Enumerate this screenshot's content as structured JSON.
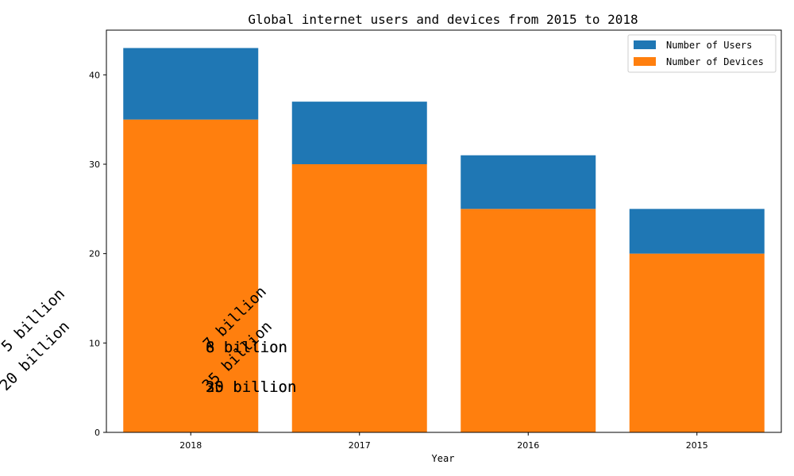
{
  "chart_data": {
    "type": "bar",
    "title": "Global internet users and devices from 2015 to 2018",
    "xlabel": "Year",
    "ylabel": "",
    "categories": [
      "2018",
      "2017",
      "2016",
      "2015"
    ],
    "series": [
      {
        "name": "Number of Devices",
        "values": [
          35,
          30,
          25,
          20
        ],
        "color": "#ff7f0e"
      },
      {
        "name": "Number of Users",
        "values": [
          8,
          7,
          6,
          5
        ],
        "color": "#1f77b4"
      }
    ],
    "stacked": true,
    "ylim": [
      0,
      45
    ],
    "yticks": [
      "0",
      "10",
      "20",
      "30",
      "40"
    ],
    "legend_position": "top-right",
    "legend": [
      "Number of Users",
      "Number of Devices"
    ],
    "annotations": [
      "5 billion",
      "20 billion",
      "8 billion",
      "7 billion",
      "6 billion",
      "35 billion",
      "30 billion",
      "25 billion"
    ],
    "grid": false
  }
}
